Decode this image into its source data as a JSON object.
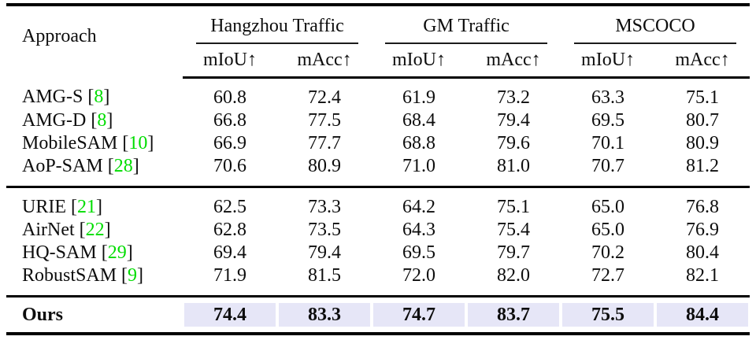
{
  "table": {
    "approach_header": "Approach",
    "group_headers": [
      "Hangzhou Traffic",
      "GM Traffic",
      "MSCOCO"
    ],
    "metric_headers": [
      "mIoU↑",
      "mAcc↑",
      "mIoU↑",
      "mAcc↑",
      "mIoU↑",
      "mAcc↑"
    ],
    "cite_open": "[",
    "cite_close": "]",
    "citation_color": "#00dd00",
    "highlight_color": "#e6e6f7",
    "groups": [
      {
        "rows": [
          {
            "name": "AMG-S",
            "ref": "8",
            "values": [
              "60.8",
              "72.4",
              "61.9",
              "73.2",
              "63.3",
              "75.1"
            ]
          },
          {
            "name": "AMG-D",
            "ref": "8",
            "values": [
              "66.8",
              "77.5",
              "68.4",
              "79.4",
              "69.5",
              "80.7"
            ]
          },
          {
            "name": "MobileSAM",
            "ref": "10",
            "values": [
              "66.9",
              "77.7",
              "68.8",
              "79.6",
              "70.1",
              "80.9"
            ]
          },
          {
            "name": "AoP-SAM",
            "ref": "28",
            "values": [
              "70.6",
              "80.9",
              "71.0",
              "81.0",
              "70.7",
              "81.2"
            ]
          }
        ]
      },
      {
        "rows": [
          {
            "name": "URIE",
            "ref": "21",
            "values": [
              "62.5",
              "73.3",
              "64.2",
              "75.1",
              "65.0",
              "76.8"
            ]
          },
          {
            "name": "AirNet",
            "ref": "22",
            "values": [
              "62.8",
              "73.5",
              "64.3",
              "75.4",
              "65.0",
              "76.9"
            ]
          },
          {
            "name": "HQ-SAM",
            "ref": "29",
            "values": [
              "69.4",
              "79.4",
              "69.5",
              "79.7",
              "70.2",
              "80.4"
            ]
          },
          {
            "name": "RobustSAM",
            "ref": "9",
            "values": [
              "71.9",
              "81.5",
              "72.0",
              "82.0",
              "72.7",
              "82.1"
            ]
          }
        ]
      }
    ],
    "ours": {
      "label": "Ours",
      "values": [
        "74.4",
        "83.3",
        "74.7",
        "83.7",
        "75.5",
        "84.4"
      ]
    }
  }
}
